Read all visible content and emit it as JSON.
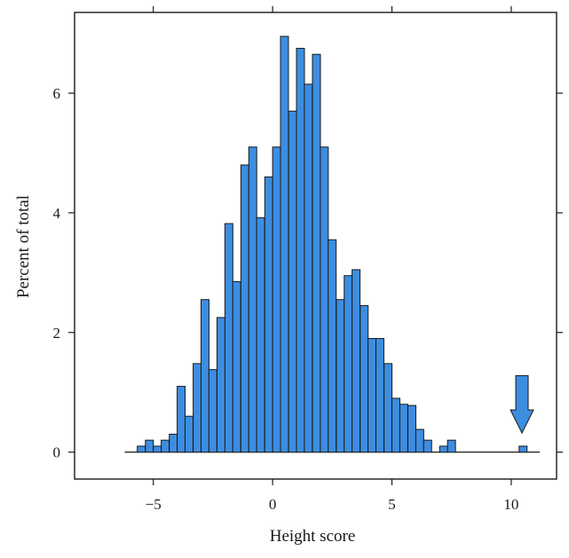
{
  "chart_data": {
    "type": "bar",
    "subtype": "histogram",
    "xlabel": "Height score",
    "ylabel": "Percent of total",
    "xlim": [
      -8.3,
      11.9
    ],
    "ylim": [
      -0.45,
      7.35
    ],
    "x_ticks": [
      {
        "value": -5,
        "label": "−5"
      },
      {
        "value": 0,
        "label": "0"
      },
      {
        "value": 5,
        "label": "5"
      },
      {
        "value": 10,
        "label": "10"
      }
    ],
    "y_ticks": [
      {
        "value": 0,
        "label": "0"
      },
      {
        "value": 2,
        "label": "2"
      },
      {
        "value": 4,
        "label": "4"
      },
      {
        "value": 6,
        "label": "6"
      }
    ],
    "bin_width": 0.3333,
    "baseline_range": [
      -6.2,
      11.2
    ],
    "bins": [
      {
        "x0": -5.67,
        "value": 0.1
      },
      {
        "x0": -5.33,
        "value": 0.2
      },
      {
        "x0": -5.0,
        "value": 0.1
      },
      {
        "x0": -4.67,
        "value": 0.2
      },
      {
        "x0": -4.33,
        "value": 0.3
      },
      {
        "x0": -4.0,
        "value": 1.1
      },
      {
        "x0": -3.67,
        "value": 0.6
      },
      {
        "x0": -3.33,
        "value": 1.48
      },
      {
        "x0": -3.0,
        "value": 2.55
      },
      {
        "x0": -2.67,
        "value": 1.38
      },
      {
        "x0": -2.33,
        "value": 2.25
      },
      {
        "x0": -2.0,
        "value": 3.82
      },
      {
        "x0": -1.67,
        "value": 2.85
      },
      {
        "x0": -1.33,
        "value": 4.8
      },
      {
        "x0": -1.0,
        "value": 5.1
      },
      {
        "x0": -0.67,
        "value": 3.92
      },
      {
        "x0": -0.33,
        "value": 4.6
      },
      {
        "x0": 0.0,
        "value": 5.1
      },
      {
        "x0": 0.33,
        "value": 6.95
      },
      {
        "x0": 0.67,
        "value": 5.7
      },
      {
        "x0": 1.0,
        "value": 6.75
      },
      {
        "x0": 1.33,
        "value": 6.15
      },
      {
        "x0": 1.67,
        "value": 6.65
      },
      {
        "x0": 2.0,
        "value": 5.1
      },
      {
        "x0": 2.33,
        "value": 3.55
      },
      {
        "x0": 2.67,
        "value": 2.55
      },
      {
        "x0": 3.0,
        "value": 2.95
      },
      {
        "x0": 3.33,
        "value": 3.05
      },
      {
        "x0": 3.67,
        "value": 2.45
      },
      {
        "x0": 4.0,
        "value": 1.9
      },
      {
        "x0": 4.33,
        "value": 1.9
      },
      {
        "x0": 4.67,
        "value": 1.48
      },
      {
        "x0": 5.0,
        "value": 0.9
      },
      {
        "x0": 5.33,
        "value": 0.8
      },
      {
        "x0": 5.67,
        "value": 0.78
      },
      {
        "x0": 6.0,
        "value": 0.38
      },
      {
        "x0": 6.33,
        "value": 0.2
      },
      {
        "x0": 7.0,
        "value": 0.1
      },
      {
        "x0": 7.33,
        "value": 0.2
      },
      {
        "x0": 10.33,
        "value": 0.1
      }
    ],
    "annotation": {
      "type": "arrow",
      "direction": "down",
      "x": 10.45,
      "y_top": 1.28,
      "y_tip": 0.32,
      "color": "#3d8de0"
    },
    "colors": {
      "bar_fill": "#3d8de0",
      "bar_stroke": "#1a1a1a",
      "axis": "#1a1a1a"
    }
  }
}
